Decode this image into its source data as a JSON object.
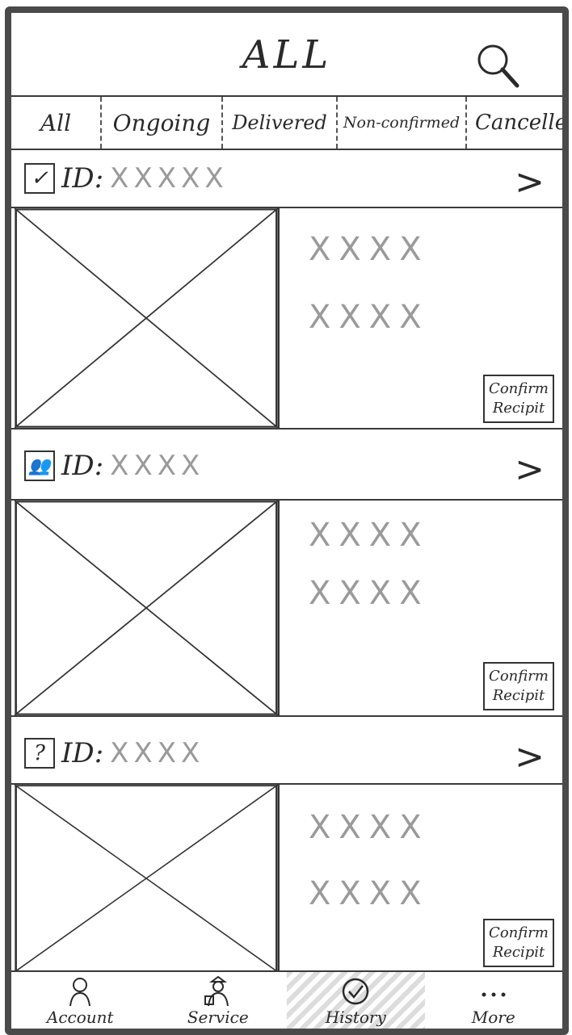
{
  "header": {
    "title": "ALL"
  },
  "tabs": [
    {
      "label": "All"
    },
    {
      "label": "Ongoing"
    },
    {
      "label": "Delivered"
    },
    {
      "label": "Non-confirmed"
    },
    {
      "label": "Cancelled"
    }
  ],
  "orders": [
    {
      "status_icon": "checkbox-checked-icon",
      "status_glyph": "✓",
      "id_label": "ID:",
      "id_value": "XXXXX",
      "line1": "XXXX",
      "line2": "XXXX",
      "button_line1": "Confirm",
      "button_line2": "Recipit"
    },
    {
      "status_icon": "person-icon",
      "status_glyph": "👥",
      "id_label": "ID:",
      "id_value": "XXXX",
      "line1": "XXXX",
      "line2": "XXXX",
      "button_line1": "Confirm",
      "button_line2": "Recipit"
    },
    {
      "status_icon": "question-icon",
      "status_glyph": "?",
      "id_label": "ID:",
      "id_value": "XXXX",
      "line1": "XXXX",
      "line2": "XXXX",
      "button_line1": "Confirm",
      "button_line2": "Recipit"
    }
  ],
  "nav": [
    {
      "label": "Account",
      "icon": "person-icon"
    },
    {
      "label": "Service",
      "icon": "service-person-icon"
    },
    {
      "label": "History",
      "icon": "history-check-icon",
      "active": true
    },
    {
      "label": "More",
      "icon": "more-dots-icon"
    }
  ]
}
